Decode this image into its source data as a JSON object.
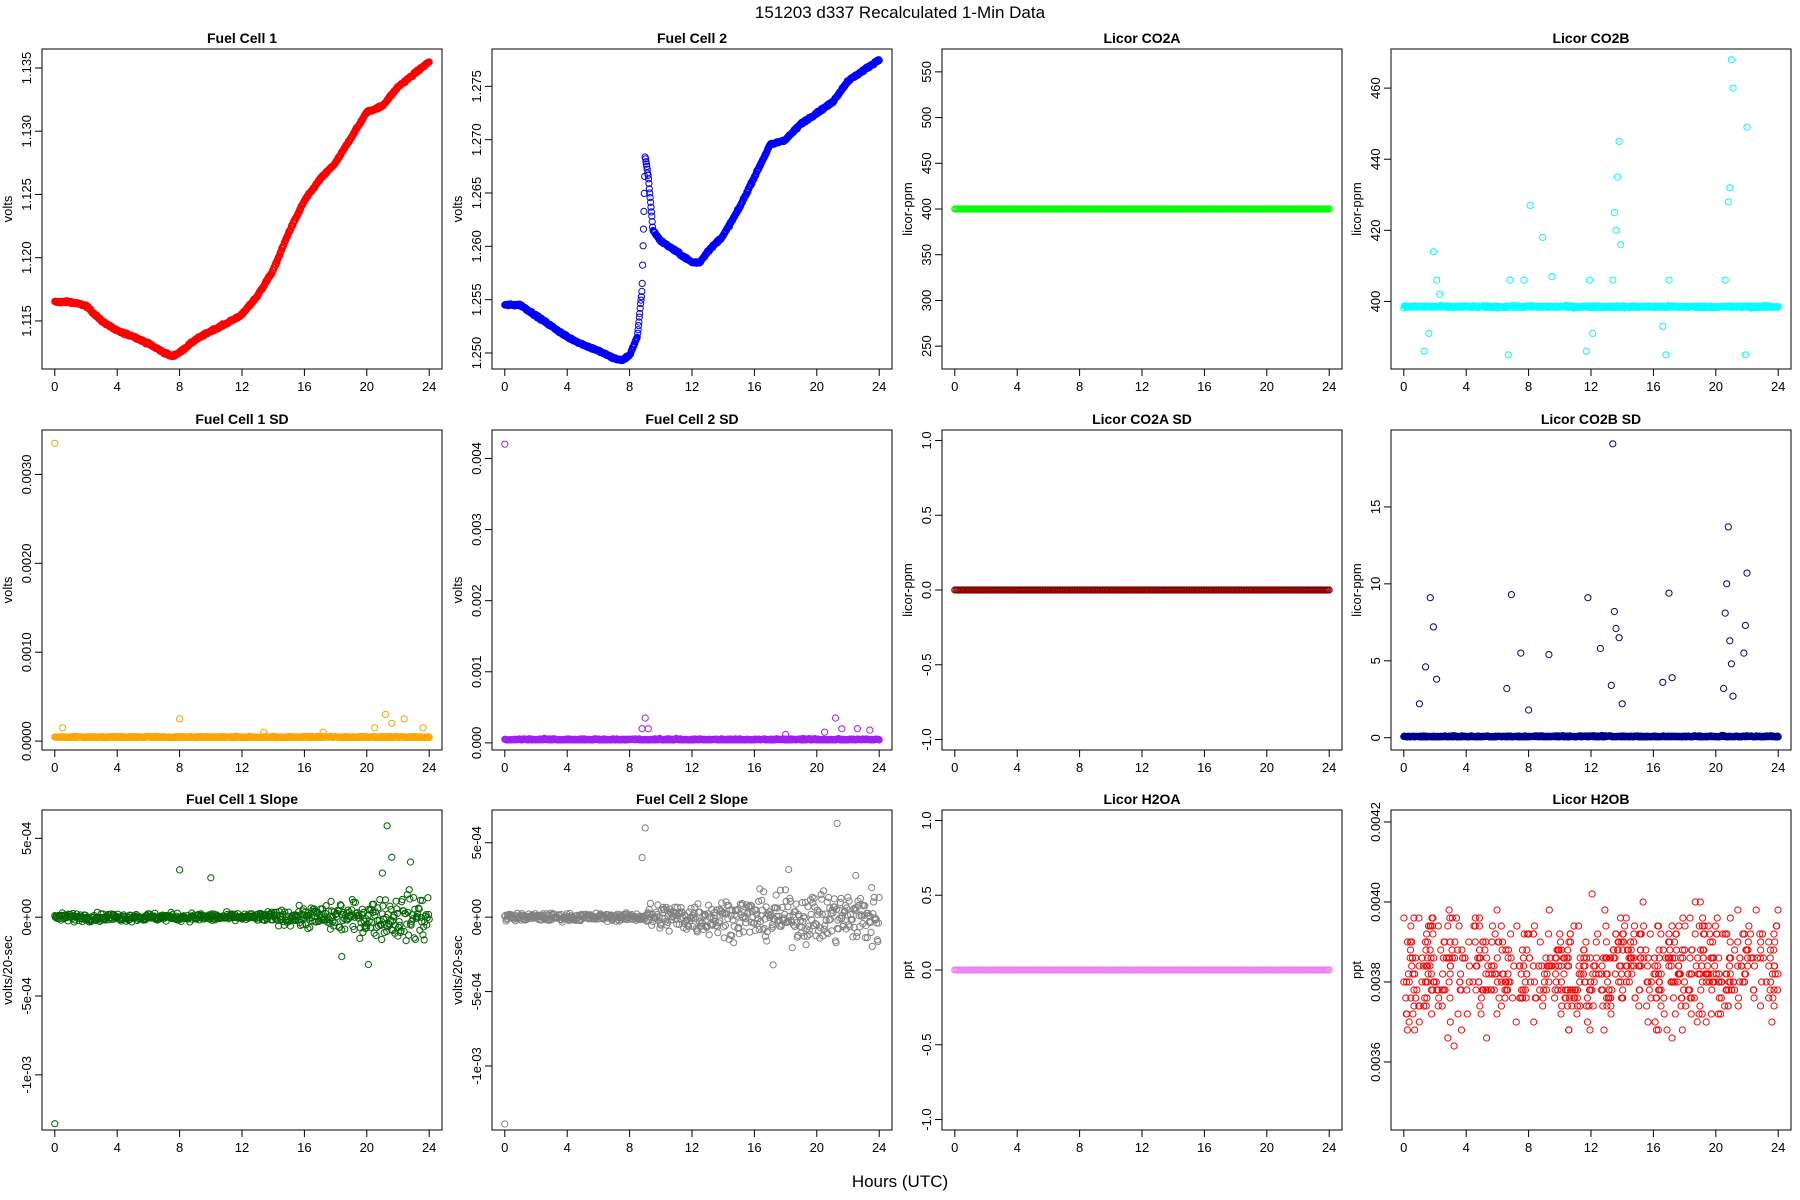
{
  "figure": {
    "title": "151203   d337   Recalculated 1-Min Data",
    "xaxis_title": "Hours (UTC)"
  },
  "chart_data": [
    {
      "id": "fc1",
      "type": "scatter",
      "title": "Fuel Cell 1",
      "ylabel": "volts",
      "color": "#ff0000",
      "xlim": [
        0,
        24
      ],
      "ylim": [
        1.1112,
        1.1365
      ],
      "xticks": [
        0,
        4,
        8,
        12,
        16,
        20,
        24
      ],
      "xtick_labels": [
        "0",
        "4",
        "8",
        "12",
        "16",
        "20",
        "24"
      ],
      "yticks": [
        1.115,
        1.12,
        1.125,
        1.13,
        1.135
      ],
      "ytick_labels": [
        "1.115",
        "1.120",
        "1.125",
        "1.130",
        "1.135"
      ],
      "x": [
        0,
        1,
        2,
        3,
        4,
        5,
        6,
        7,
        7.5,
        8,
        9,
        10,
        11,
        12,
        13,
        14,
        15,
        16,
        17,
        18,
        19,
        20,
        21,
        22,
        23,
        24
      ],
      "y": [
        1.1165,
        1.1165,
        1.1162,
        1.115,
        1.1142,
        1.1138,
        1.1132,
        1.1125,
        1.1122,
        1.1125,
        1.1135,
        1.1142,
        1.1148,
        1.1155,
        1.117,
        1.119,
        1.122,
        1.1245,
        1.1262,
        1.1275,
        1.1295,
        1.1315,
        1.132,
        1.1335,
        1.1345,
        1.1355
      ]
    },
    {
      "id": "fc2",
      "type": "scatter",
      "title": "Fuel Cell 2",
      "ylabel": "volts",
      "color": "#0000ff",
      "xlim": [
        0,
        24
      ],
      "ylim": [
        1.2485,
        1.2785
      ],
      "xticks": [
        0,
        4,
        8,
        12,
        16,
        20,
        24
      ],
      "xtick_labels": [
        "0",
        "4",
        "8",
        "12",
        "16",
        "20",
        "24"
      ],
      "yticks": [
        1.25,
        1.255,
        1.26,
        1.265,
        1.27,
        1.275
      ],
      "ytick_labels": [
        "1.250",
        "1.255",
        "1.260",
        "1.265",
        "1.270",
        "1.275"
      ],
      "x": [
        0,
        1,
        2,
        3,
        4,
        5,
        6,
        7,
        7.5,
        8,
        8.5,
        8.8,
        9,
        9.2,
        9.5,
        10,
        11,
        12,
        12.5,
        13,
        14,
        15,
        16,
        17,
        18,
        19,
        20,
        21,
        22,
        23,
        24
      ],
      "y": [
        1.2545,
        1.2545,
        1.2535,
        1.2525,
        1.2515,
        1.2508,
        1.2502,
        1.2495,
        1.2493,
        1.2498,
        1.2515,
        1.256,
        1.2685,
        1.2665,
        1.2615,
        1.2605,
        1.2595,
        1.2585,
        1.2585,
        1.2595,
        1.261,
        1.2635,
        1.2665,
        1.2695,
        1.27,
        1.2715,
        1.2725,
        1.2735,
        1.2755,
        1.2765,
        1.2775
      ]
    },
    {
      "id": "co2a",
      "type": "scatter",
      "title": "Licor CO2A",
      "ylabel": "licor-ppm",
      "color": "#00ff00",
      "xlim": [
        0,
        24
      ],
      "ylim": [
        225,
        575
      ],
      "xticks": [
        0,
        4,
        8,
        12,
        16,
        20,
        24
      ],
      "xtick_labels": [
        "0",
        "4",
        "8",
        "12",
        "16",
        "20",
        "24"
      ],
      "yticks": [
        250,
        300,
        350,
        400,
        450,
        500,
        550
      ],
      "ytick_labels": [
        "250",
        "300",
        "350",
        "400",
        "450",
        "500",
        "550"
      ],
      "x": [
        0,
        24
      ],
      "y": [
        400,
        400
      ]
    },
    {
      "id": "co2b",
      "type": "scatter",
      "title": "Licor CO2B",
      "ylabel": "licor-ppm",
      "color": "#00ffff",
      "xlim": [
        0,
        24
      ],
      "ylim": [
        381,
        471
      ],
      "xticks": [
        0,
        4,
        8,
        12,
        16,
        20,
        24
      ],
      "xtick_labels": [
        "0",
        "4",
        "8",
        "12",
        "16",
        "20",
        "24"
      ],
      "yticks": [
        400,
        420,
        440,
        460
      ],
      "ytick_labels": [
        "400",
        "420",
        "440",
        "460"
      ],
      "x": [
        0,
        24
      ],
      "y": [
        398.5,
        398.5
      ],
      "outliers_x": [
        1.3,
        1.6,
        1.9,
        2.1,
        2.3,
        6.7,
        6.8,
        7.7,
        8.1,
        8.9,
        9.5,
        11.7,
        11.9,
        12.1,
        13.4,
        13.5,
        13.6,
        13.7,
        13.8,
        13.9,
        16.6,
        16.8,
        17,
        20.6,
        20.8,
        20.9,
        21.0,
        21.1,
        21.9,
        22.0
      ],
      "outliers_y": [
        386,
        391,
        414,
        406,
        402,
        385,
        406,
        406,
        427,
        418,
        407,
        386,
        406,
        391,
        406,
        425,
        420,
        435,
        445,
        416,
        393,
        385,
        406,
        406,
        428,
        432,
        468,
        460,
        385,
        449
      ]
    },
    {
      "id": "fc1sd",
      "type": "scatter",
      "title": "Fuel Cell 1 SD",
      "ylabel": "volts",
      "color": "#ffa500",
      "xlim": [
        0,
        24
      ],
      "ylim": [
        -0.0001,
        0.0035
      ],
      "xticks": [
        0,
        4,
        8,
        12,
        16,
        20,
        24
      ],
      "xtick_labels": [
        "0",
        "4",
        "8",
        "12",
        "16",
        "20",
        "24"
      ],
      "yticks": [
        0,
        0.001,
        0.002,
        0.003
      ],
      "ytick_labels": [
        "0.0000",
        "0.0010",
        "0.0020",
        "0.0030"
      ],
      "x": [
        0,
        24
      ],
      "y": [
        4e-05,
        4e-05
      ],
      "outliers_x": [
        0,
        0.5,
        8,
        13.4,
        17.2,
        20.5,
        21.2,
        21.6,
        22.4,
        23.6
      ],
      "outliers_y": [
        0.00335,
        0.00015,
        0.00025,
        0.0001,
        0.0001,
        0.00015,
        0.0003,
        0.0002,
        0.00025,
        0.00015
      ]
    },
    {
      "id": "fc2sd",
      "type": "scatter",
      "title": "Fuel Cell 2 SD",
      "ylabel": "volts",
      "color": "#a020f0",
      "xlim": [
        0,
        24
      ],
      "ylim": [
        -0.0001,
        0.0044
      ],
      "xticks": [
        0,
        4,
        8,
        12,
        16,
        20,
        24
      ],
      "xtick_labels": [
        "0",
        "4",
        "8",
        "12",
        "16",
        "20",
        "24"
      ],
      "yticks": [
        0,
        0.001,
        0.002,
        0.003,
        0.004
      ],
      "ytick_labels": [
        "0.000",
        "0.001",
        "0.002",
        "0.003",
        "0.004"
      ],
      "x": [
        0,
        24
      ],
      "y": [
        4e-05,
        4e-05
      ],
      "outliers_x": [
        0,
        8.8,
        9,
        9.2,
        18,
        20.5,
        21.2,
        21.6,
        22.6,
        23.4
      ],
      "outliers_y": [
        0.0042,
        0.0002,
        0.00035,
        0.0002,
        0.00012,
        0.00015,
        0.00035,
        0.0002,
        0.0002,
        0.00018
      ]
    },
    {
      "id": "co2asd",
      "type": "scatter",
      "title": "Licor CO2A SD",
      "ylabel": "licor-ppm",
      "color": "#8b0000",
      "xlim": [
        0,
        24
      ],
      "ylim": [
        -1.07,
        1.07
      ],
      "xticks": [
        0,
        4,
        8,
        12,
        16,
        20,
        24
      ],
      "xtick_labels": [
        "0",
        "4",
        "8",
        "12",
        "16",
        "20",
        "24"
      ],
      "yticks": [
        -1,
        -0.5,
        0,
        0.5,
        1
      ],
      "ytick_labels": [
        "-1.0",
        "-0.5",
        "0.0",
        "0.5",
        "1.0"
      ],
      "x": [
        0,
        24
      ],
      "y": [
        0,
        0
      ]
    },
    {
      "id": "co2bsd",
      "type": "scatter",
      "title": "Licor CO2B SD",
      "ylabel": "licor-ppm",
      "color": "#00008b",
      "xlim": [
        0,
        24
      ],
      "ylim": [
        -0.8,
        20
      ],
      "xticks": [
        0,
        4,
        8,
        12,
        16,
        20,
        24
      ],
      "xtick_labels": [
        "0",
        "4",
        "8",
        "12",
        "16",
        "20",
        "24"
      ],
      "yticks": [
        0,
        5,
        10,
        15
      ],
      "ytick_labels": [
        "0",
        "5",
        "10",
        "15"
      ],
      "x": [
        0,
        24
      ],
      "y": [
        0.05,
        0.05
      ],
      "outliers_x": [
        1.0,
        1.4,
        1.7,
        1.9,
        2.1,
        6.6,
        6.9,
        7.5,
        8.0,
        9.3,
        11.8,
        12.6,
        13.3,
        13.4,
        13.5,
        13.6,
        13.8,
        14.0,
        16.6,
        17.0,
        17.2,
        20.5,
        20.6,
        20.7,
        20.8,
        20.9,
        21.0,
        21.1,
        21.8,
        21.9,
        22.0
      ],
      "outliers_y": [
        2.2,
        4.6,
        9.1,
        7.2,
        3.8,
        3.2,
        9.3,
        5.5,
        1.8,
        5.4,
        9.1,
        5.8,
        3.4,
        19.1,
        8.2,
        7.1,
        6.5,
        2.2,
        3.6,
        9.4,
        3.9,
        3.2,
        8.1,
        10.0,
        13.7,
        6.3,
        4.8,
        2.7,
        5.5,
        7.3,
        10.7
      ]
    },
    {
      "id": "fc1slope",
      "type": "scatter",
      "title": "Fuel Cell 1 Slope",
      "ylabel": "volts/20-sec",
      "color": "#006400",
      "xlim": [
        0,
        24
      ],
      "ylim": [
        -0.00135,
        0.00068
      ],
      "xticks": [
        0,
        4,
        8,
        12,
        16,
        20,
        24
      ],
      "xtick_labels": [
        "0",
        "4",
        "8",
        "12",
        "16",
        "20",
        "24"
      ],
      "yticks": [
        -0.001,
        -0.0005,
        0,
        0.0005
      ],
      "ytick_labels": [
        "-1e-03",
        "-5e-04",
        "0e+00",
        "5e-04"
      ],
      "x": [
        0,
        24
      ],
      "y": [
        0,
        0
      ],
      "outliers_x": [
        0,
        8,
        10,
        21.3,
        21.6,
        22.8,
        21.0,
        20.1,
        18.4
      ],
      "outliers_y": [
        -0.00131,
        0.0003,
        0.00025,
        0.00058,
        0.00038,
        0.00035,
        0.00028,
        -0.0003,
        -0.00025
      ]
    },
    {
      "id": "fc2slope",
      "type": "scatter",
      "title": "Fuel Cell 2 Slope",
      "ylabel": "volts/20-sec",
      "color": "#808080",
      "xlim": [
        0,
        24
      ],
      "ylim": [
        -0.00143,
        0.00072
      ],
      "xticks": [
        0,
        4,
        8,
        12,
        16,
        20,
        24
      ],
      "xtick_labels": [
        "0",
        "4",
        "8",
        "12",
        "16",
        "20",
        "24"
      ],
      "yticks": [
        -0.001,
        -0.0005,
        0,
        0.0005
      ],
      "ytick_labels": [
        "-1e-03",
        "-5e-04",
        "0e+00",
        "5e-04"
      ],
      "x": [
        0,
        24
      ],
      "y": [
        0,
        0
      ],
      "outliers_x": [
        0,
        9,
        8.8,
        21.3,
        18.2,
        22.5,
        17.2
      ],
      "outliers_y": [
        -0.00139,
        0.0006,
        0.0004,
        0.00063,
        0.00032,
        0.00028,
        -0.00032
      ]
    },
    {
      "id": "h2oa",
      "type": "scatter",
      "title": "Licor H2OA",
      "ylabel": "ppt",
      "color": "#ee82ee",
      "xlim": [
        0,
        24
      ],
      "ylim": [
        -1.07,
        1.07
      ],
      "xticks": [
        0,
        4,
        8,
        12,
        16,
        20,
        24
      ],
      "xtick_labels": [
        "0",
        "4",
        "8",
        "12",
        "16",
        "20",
        "24"
      ],
      "yticks": [
        -1,
        -0.5,
        0,
        0.5,
        1
      ],
      "ytick_labels": [
        "-1.0",
        "-0.5",
        "0.0",
        "0.5",
        "1.0"
      ],
      "x": [
        0,
        24
      ],
      "y": [
        0,
        0
      ]
    },
    {
      "id": "h2ob",
      "type": "scatter",
      "title": "Licor H2OB",
      "ylabel": "ppt",
      "color": "#ff0000",
      "xlim": [
        0,
        24
      ],
      "ylim": [
        0.00343,
        0.00423
      ],
      "xticks": [
        0,
        4,
        8,
        12,
        16,
        20,
        24
      ],
      "xtick_labels": [
        "0",
        "4",
        "8",
        "12",
        "16",
        "20",
        "24"
      ],
      "yticks": [
        0.0036,
        0.0038,
        0.004,
        0.0042
      ],
      "ytick_labels": [
        "0.0036",
        "0.0038",
        "0.0040",
        "0.0042"
      ],
      "x": [
        0,
        24
      ],
      "y": [
        0.00385,
        0.00385
      ],
      "spread": [
        0.00363,
        0.00404
      ]
    }
  ]
}
